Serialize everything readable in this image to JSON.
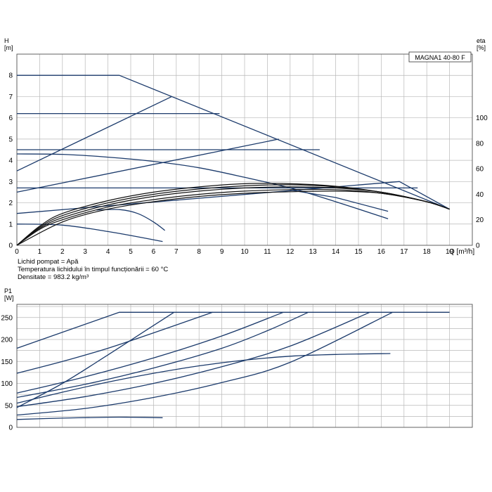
{
  "chart_data": [
    {
      "type": "line",
      "id": "head",
      "title": "MAGNA1 40-80 F",
      "ylabel": "H\n[m]",
      "ylabel_right": "eta\n[%]",
      "xlabel": "Q [m³/h]",
      "xlim": [
        0,
        20
      ],
      "ylim": [
        0,
        9
      ],
      "ylim_right": [
        0,
        150
      ],
      "xticks": [
        0,
        1,
        2,
        3,
        4,
        5,
        6,
        7,
        8,
        9,
        10,
        11,
        12,
        13,
        14,
        15,
        16,
        17,
        18,
        19
      ],
      "yticks": [
        0,
        1,
        2,
        3,
        4,
        5,
        6,
        7,
        8
      ],
      "yticks_right": [
        0,
        20,
        40,
        60,
        80,
        100
      ],
      "grid": true,
      "annotations": [
        "Lichid pompat = Apă",
        "Temperatura lichidului în timpul funcționării = 60 °C",
        "Densitate = 983.2 kg/m³"
      ],
      "series": [
        {
          "role": "max",
          "x": [
            0,
            4.5,
            19
          ],
          "y": [
            8.0,
            8.0,
            1.7
          ]
        },
        {
          "role": "prop-max",
          "x": [
            0,
            6.8
          ],
          "y": [
            3.5,
            7.0
          ]
        },
        {
          "role": "const-6.2",
          "x": [
            0,
            8.9
          ],
          "y": [
            6.2,
            6.2
          ]
        },
        {
          "role": "const-4.5",
          "x": [
            0,
            13.3
          ],
          "y": [
            4.5,
            4.5
          ]
        },
        {
          "role": "prop-mid",
          "x": [
            0,
            11.5
          ],
          "y": [
            2.5,
            5.0
          ]
        },
        {
          "role": "prop-low",
          "x": [
            0,
            16.8,
            19
          ],
          "y": [
            1.5,
            3.0,
            1.7
          ]
        },
        {
          "role": "const-2.7",
          "x": [
            0,
            17.6
          ],
          "y": [
            2.7,
            2.7
          ]
        },
        {
          "role": "h-curve-4.3",
          "x": [
            0,
            2,
            4,
            6,
            8,
            10,
            12,
            14,
            16.3
          ],
          "y": [
            4.3,
            4.28,
            4.15,
            3.95,
            3.65,
            3.2,
            2.7,
            2.05,
            1.25
          ]
        },
        {
          "role": "h-curve-1.7",
          "x": [
            3.5,
            4.5,
            5.3,
            6.0,
            6.5
          ],
          "y": [
            1.66,
            1.68,
            1.5,
            1.1,
            0.7
          ]
        },
        {
          "role": "h-curve-1.0",
          "x": [
            0,
            2,
            4,
            6.4
          ],
          "y": [
            1.0,
            0.95,
            0.65,
            0.18
          ]
        },
        {
          "role": "h-curve-2.6",
          "x": [
            12,
            14,
            16.3
          ],
          "y": [
            2.6,
            2.25,
            1.6
          ]
        },
        {
          "role": "eta-1",
          "x": [
            0,
            1,
            2,
            4,
            6,
            8,
            10,
            12,
            14,
            16,
            18,
            19
          ],
          "y": [
            0,
            0.9,
            1.5,
            2.1,
            2.5,
            2.75,
            2.9,
            2.9,
            2.78,
            2.5,
            2.05,
            1.7
          ]
        },
        {
          "role": "eta-2",
          "x": [
            0,
            1,
            2,
            4,
            6,
            8,
            10,
            12,
            14,
            16,
            18,
            19
          ],
          "y": [
            0,
            0.85,
            1.4,
            2.0,
            2.4,
            2.65,
            2.8,
            2.85,
            2.75,
            2.5,
            2.05,
            1.7
          ]
        },
        {
          "role": "eta-3",
          "x": [
            0,
            1,
            2,
            4,
            6,
            8,
            10,
            12,
            14,
            16,
            18,
            19
          ],
          "y": [
            0,
            0.8,
            1.3,
            1.9,
            2.3,
            2.55,
            2.7,
            2.75,
            2.7,
            2.5,
            2.05,
            1.7
          ]
        },
        {
          "role": "eta-4",
          "x": [
            0,
            1,
            2,
            4,
            6,
            8,
            10,
            12,
            14,
            16,
            18,
            19
          ],
          "y": [
            0,
            0.75,
            1.2,
            1.8,
            2.15,
            2.4,
            2.55,
            2.62,
            2.62,
            2.45,
            2.05,
            1.7
          ]
        },
        {
          "role": "eta-5",
          "x": [
            0,
            2,
            4,
            6,
            8,
            10,
            12,
            14,
            16,
            18,
            19
          ],
          "y": [
            0,
            1.1,
            1.7,
            2.05,
            2.3,
            2.45,
            2.52,
            2.55,
            2.45,
            2.05,
            1.7
          ]
        }
      ]
    },
    {
      "type": "line",
      "id": "power",
      "ylabel": "P1\n[W]",
      "xlim": [
        0,
        20
      ],
      "ylim": [
        0,
        280
      ],
      "yticks": [
        0,
        50,
        100,
        150,
        200,
        250
      ],
      "grid": true,
      "series": [
        {
          "role": "max",
          "x": [
            0,
            4.5,
            19
          ],
          "y": [
            180,
            262,
            262
          ]
        },
        {
          "role": "p-a",
          "x": [
            0,
            2,
            4,
            6,
            8.6
          ],
          "y": [
            123,
            150,
            180,
            215,
            262
          ]
        },
        {
          "role": "p-b",
          "x": [
            0,
            2,
            4,
            5.5,
            6.9
          ],
          "y": [
            45,
            100,
            165,
            215,
            262
          ]
        },
        {
          "role": "p-c",
          "x": [
            0,
            3,
            6,
            9,
            11.7
          ],
          "y": [
            78,
            115,
            158,
            208,
            262
          ]
        },
        {
          "role": "p-d",
          "x": [
            0,
            3,
            6,
            9,
            11,
            12.8
          ],
          "y": [
            68,
            98,
            135,
            180,
            220,
            262
          ]
        },
        {
          "role": "p-e",
          "x": [
            0,
            3,
            6,
            9,
            12,
            15.5
          ],
          "y": [
            47,
            70,
            100,
            138,
            185,
            262
          ]
        },
        {
          "role": "p-f",
          "x": [
            0,
            3,
            6,
            9,
            12,
            16.5
          ],
          "y": [
            28,
            43,
            68,
            102,
            148,
            262
          ]
        },
        {
          "role": "p-g",
          "x": [
            0,
            2,
            4,
            6,
            8,
            10,
            12,
            14,
            16.4
          ],
          "y": [
            55,
            80,
            103,
            123,
            140,
            153,
            162,
            166,
            168
          ]
        },
        {
          "role": "p-h",
          "x": [
            0,
            2,
            4,
            5,
            6.4
          ],
          "y": [
            18,
            21,
            23,
            23,
            22
          ]
        }
      ]
    }
  ]
}
